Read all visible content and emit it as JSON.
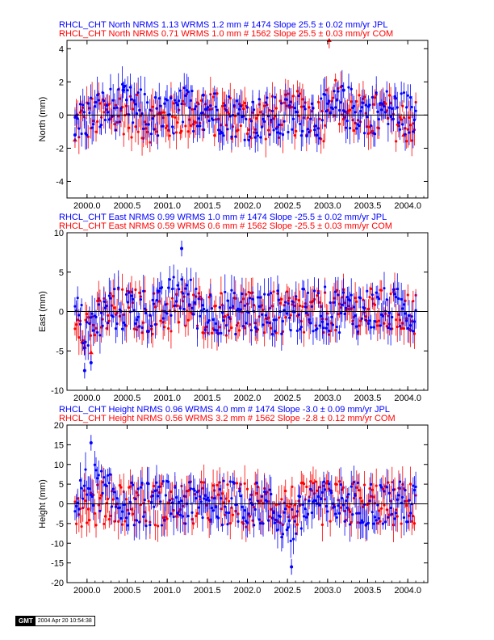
{
  "chart_data": [
    {
      "type": "scatter",
      "ylabel": "North (mm)",
      "xlim": [
        1999.75,
        2004.25
      ],
      "ylim": [
        -5,
        4.5
      ],
      "xticks": [
        "2000.0",
        "2000.5",
        "2001.0",
        "2001.5",
        "2002.0",
        "2002.5",
        "2003.0",
        "2003.5",
        "2004.0"
      ],
      "yticks": [
        "-4",
        "-2",
        "0",
        "2",
        "4"
      ],
      "ytick_values": [
        -4,
        -2,
        0,
        2,
        4
      ],
      "zero_line": true,
      "series": [
        {
          "name": "COM",
          "color": "#ff0000",
          "header": "RHCL_CHT North NRMS 0.71 WRMS  1.0 mm # 1562 Slope   25.5 ±  0.03 mm/yr COM",
          "x": [
            1999.85,
            2000.2,
            2000.45,
            2000.7,
            2000.95,
            2001.2,
            2001.45,
            2001.7,
            2001.95,
            2002.2,
            2002.45,
            2002.7,
            2002.95,
            2003.02,
            2003.2,
            2003.45,
            2003.7,
            2003.95,
            2004.1
          ],
          "y": [
            -1.5,
            0.2,
            0.5,
            -0.8,
            -1.0,
            0.3,
            0.4,
            -0.2,
            -0.5,
            -0.6,
            -0.3,
            0.5,
            -0.8,
            4.5,
            0.8,
            -0.5,
            0.2,
            -1.2,
            -1.0
          ]
        },
        {
          "name": "JPL",
          "color": "#0000ff",
          "header": "RHCL_CHT North NRMS 1.13 WRMS  1.2 mm # 1474 Slope   25.5 ±  0.02 mm/yr JPL",
          "x": [
            1999.85,
            2000.2,
            2000.45,
            2000.7,
            2000.95,
            2001.2,
            2001.45,
            2001.7,
            2001.95,
            2002.2,
            2002.45,
            2002.7,
            2002.95,
            2003.2,
            2003.45,
            2003.7,
            2003.95,
            2004.1
          ],
          "y": [
            -1.2,
            0.8,
            1.5,
            0.5,
            -0.8,
            1.0,
            1.2,
            0.3,
            -0.5,
            -0.5,
            -0.8,
            0.2,
            -0.3,
            1.5,
            0.3,
            0.8,
            0.5,
            -0.6
          ]
        }
      ]
    },
    {
      "type": "scatter",
      "ylabel": "East (mm)",
      "xlim": [
        1999.75,
        2004.25
      ],
      "ylim": [
        -10,
        10
      ],
      "xticks": [
        "2000.0",
        "2000.5",
        "2001.0",
        "2001.5",
        "2002.0",
        "2002.5",
        "2003.0",
        "2003.5",
        "2004.0"
      ],
      "yticks": [
        "-10",
        "-5",
        "0",
        "5",
        "10"
      ],
      "ytick_values": [
        -10,
        -5,
        0,
        5,
        10
      ],
      "zero_line": true,
      "series": [
        {
          "name": "COM",
          "color": "#ff0000",
          "header": "RHCL_CHT East NRMS 0.59 WRMS  0.6 mm # 1562 Slope  -25.5 ±  0.03 mm/yr COM",
          "x": [
            1999.85,
            1999.97,
            2000.05,
            2000.3,
            2000.6,
            2000.9,
            2001.2,
            2001.5,
            2001.8,
            2002.1,
            2002.4,
            2002.7,
            2002.95,
            2003.2,
            2003.5,
            2003.8,
            2004.1
          ],
          "y": [
            0.2,
            -4.5,
            -5.2,
            0.5,
            0.3,
            -0.5,
            0.1,
            -0.2,
            -0.8,
            -1.0,
            -0.8,
            -1.5,
            -0.5,
            -0.2,
            0.3,
            0.2,
            -0.6
          ]
        },
        {
          "name": "JPL",
          "color": "#0000ff",
          "header": "RHCL_CHT East NRMS 0.99 WRMS  1.0 mm # 1474 Slope  -25.5 ±  0.02 mm/yr JPL",
          "x": [
            1999.85,
            1999.97,
            2000.05,
            2000.3,
            2000.6,
            2000.9,
            2001.18,
            2001.4,
            2001.7,
            2002.0,
            2002.3,
            2002.6,
            2002.9,
            2003.2,
            2003.5,
            2003.8,
            2004.1
          ],
          "y": [
            0.5,
            -7.5,
            -6.5,
            1.0,
            0.8,
            0.2,
            8.0,
            0.5,
            0.0,
            -0.5,
            -0.3,
            -0.2,
            1.0,
            0.5,
            0.8,
            0.4,
            0.2
          ]
        }
      ]
    },
    {
      "type": "scatter",
      "ylabel": "Height (mm)",
      "xlim": [
        1999.75,
        2004.25
      ],
      "ylim": [
        -20,
        20
      ],
      "xticks": [
        "2000.0",
        "2000.5",
        "2001.0",
        "2001.5",
        "2002.0",
        "2002.5",
        "2003.0",
        "2003.5",
        "2004.0"
      ],
      "yticks": [
        "-20",
        "-15",
        "-10",
        "-5",
        "0",
        "5",
        "10",
        "15",
        "20"
      ],
      "ytick_values": [
        -20,
        -15,
        -10,
        -5,
        0,
        5,
        10,
        15,
        20
      ],
      "zero_line": true,
      "series": [
        {
          "name": "COM",
          "color": "#ff0000",
          "header": "RHCL_CHT Height NRMS 0.56 WRMS  3.2 mm # 1562 Slope   -2.8 ±  0.12 mm/yr COM",
          "x": [
            1999.85,
            2000.1,
            2000.4,
            2000.7,
            2001.0,
            2001.3,
            2001.6,
            2001.9,
            2002.2,
            2002.5,
            2002.8,
            2003.1,
            2003.4,
            2003.7,
            2004.0,
            2004.1
          ],
          "y": [
            0.5,
            -1.0,
            1.5,
            0.5,
            -0.5,
            0.0,
            1.0,
            -1.0,
            0.5,
            -1.5,
            0.0,
            1.0,
            -0.5,
            0.5,
            -1.0,
            0.0
          ]
        },
        {
          "name": "JPL",
          "color": "#0000ff",
          "header": "RHCL_CHT Height NRMS 0.96 WRMS  4.0 mm # 1474 Slope   -3.0 ±  0.09 mm/yr JPL",
          "x": [
            1999.85,
            2000.05,
            2000.4,
            2000.7,
            2001.0,
            2001.3,
            2001.6,
            2001.9,
            2002.2,
            2002.55,
            2002.8,
            2003.1,
            2003.4,
            2003.7,
            2004.0,
            2004.1
          ],
          "y": [
            -1.0,
            15.5,
            0.5,
            -0.5,
            1.0,
            -1.0,
            0.5,
            1.5,
            -1.0,
            -16.0,
            1.0,
            -0.5,
            1.5,
            0.0,
            0.5,
            -1.0
          ]
        }
      ]
    }
  ],
  "footer": {
    "logo": "GMT",
    "timestamp": "2004 Apr 20 10:54:38"
  }
}
